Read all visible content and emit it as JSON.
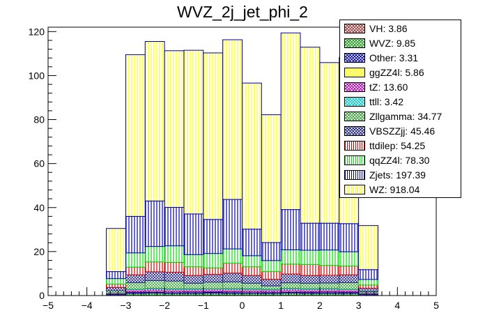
{
  "chart_data": {
    "type": "bar",
    "stacked": true,
    "title": "WVZ_2j_jet_phi_2",
    "xlabel": "",
    "ylabel": "",
    "xlim": [
      -5,
      5
    ],
    "ylim": [
      0,
      122
    ],
    "x_ticks": [
      "−5",
      "−4",
      "−3",
      "−2",
      "−1",
      "0",
      "1",
      "2",
      "3",
      "4",
      "5"
    ],
    "y_ticks": [
      "0",
      "20",
      "40",
      "60",
      "80",
      "100",
      "120"
    ],
    "bin_edges": [
      -3.5,
      -3.0,
      -2.5,
      -2.0,
      -1.5,
      -1.0,
      -0.5,
      0.0,
      0.5,
      1.0,
      1.5,
      2.0,
      2.5,
      3.0,
      3.5
    ],
    "legend_position": "top-right",
    "series": [
      {
        "name": "VH: 3.86",
        "color": "#9a3a3a",
        "pattern": "cross",
        "values": [
          0.1,
          0.3,
          0.3,
          0.3,
          0.3,
          0.3,
          0.3,
          0.3,
          0.3,
          0.3,
          0.3,
          0.3,
          0.3,
          0.1
        ]
      },
      {
        "name": "WVZ: 9.85",
        "color": "#1a9a1a",
        "pattern": "cross",
        "values": [
          0.3,
          0.7,
          0.8,
          0.7,
          0.7,
          0.8,
          0.7,
          0.7,
          0.7,
          0.8,
          0.7,
          0.7,
          0.7,
          0.3
        ]
      },
      {
        "name": "Other: 3.31",
        "color": "#0000aa",
        "pattern": "cross",
        "values": [
          0.1,
          0.3,
          0.3,
          0.2,
          0.3,
          0.3,
          0.3,
          0.2,
          0.2,
          0.3,
          0.3,
          0.3,
          0.3,
          0.1
        ]
      },
      {
        "name": "ggZZ4l: 5.86",
        "color": "#ffff00",
        "pattern": "cross",
        "values": [
          0.2,
          0.4,
          0.5,
          0.5,
          0.5,
          0.4,
          0.5,
          0.5,
          0.4,
          0.5,
          0.4,
          0.5,
          0.4,
          0.2
        ]
      },
      {
        "name": "tZ: 13.60",
        "color": "#b000b0",
        "pattern": "cross",
        "values": [
          0.4,
          1.0,
          1.1,
          1.1,
          1.0,
          1.1,
          1.1,
          1.1,
          1.0,
          1.1,
          1.1,
          1.1,
          1.0,
          0.4
        ]
      },
      {
        "name": "ttll: 3.42",
        "color": "#00c8c8",
        "pattern": "cross",
        "values": [
          0.1,
          0.2,
          0.3,
          0.3,
          0.3,
          0.2,
          0.3,
          0.3,
          0.3,
          0.3,
          0.3,
          0.3,
          0.2,
          0.1
        ]
      },
      {
        "name": "Zllgamma: 34.77",
        "color": "#3aa03a",
        "pattern": "cross",
        "values": [
          1.0,
          3.0,
          3.5,
          3.5,
          2.5,
          3.0,
          3.0,
          2.5,
          1.5,
          2.5,
          2.5,
          2.5,
          3.0,
          0.6
        ]
      },
      {
        "name": "VBSZZjj: 45.46",
        "color": "#202080",
        "pattern": "cross",
        "values": [
          1.5,
          3.5,
          4.0,
          4.0,
          3.5,
          3.5,
          4.0,
          3.5,
          3.0,
          4.0,
          3.5,
          3.5,
          3.5,
          1.5
        ]
      },
      {
        "name": "ttdilep: 54.25",
        "color": "#cc0000",
        "pattern": "vert",
        "values": [
          1.5,
          3.5,
          4.5,
          4.5,
          4.0,
          3.0,
          4.5,
          4.0,
          3.5,
          4.5,
          5.0,
          4.5,
          4.0,
          1.5
        ]
      },
      {
        "name": "qqZZ4l: 78.30",
        "color": "#00dd00",
        "pattern": "vert",
        "values": [
          2.5,
          6.5,
          7.0,
          7.5,
          5.5,
          6.5,
          6.5,
          5.0,
          5.0,
          6.5,
          6.5,
          7.0,
          6.5,
          2.5
        ]
      },
      {
        "name": "Zjets: 197.39",
        "color": "#0000aa",
        "pattern": "vert",
        "values": [
          3.2,
          16.6,
          20.7,
          17.5,
          18.5,
          15.5,
          22.5,
          12.1,
          8.2,
          18.3,
          12.3,
          12.2,
          12.8,
          4.5
        ]
      },
      {
        "name": "WZ: 918.04",
        "color": "#ffff00",
        "pattern": "vert",
        "values": [
          19.6,
          73.5,
          72.5,
          71.2,
          74.4,
          75.7,
          72.6,
          66.4,
          58.1,
          80.3,
          80.0,
          73.0,
          75.6,
          20.0
        ]
      }
    ]
  }
}
